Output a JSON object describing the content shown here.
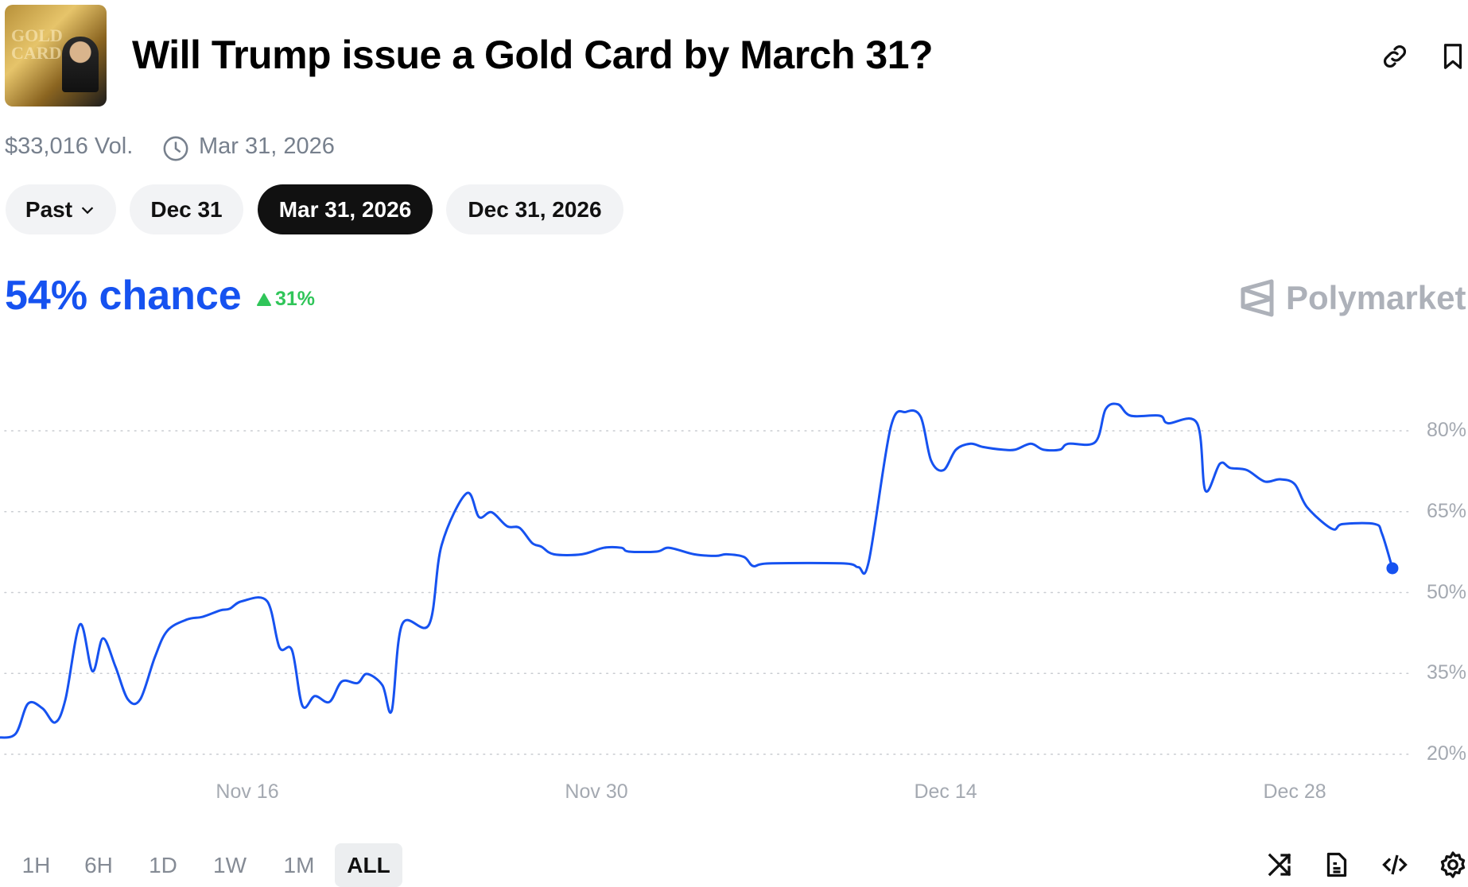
{
  "header": {
    "title": "Will Trump issue a Gold Card by March 31?",
    "thumbnail_text": "GOLD CARD",
    "icons": [
      "link-icon",
      "bookmark-icon"
    ]
  },
  "meta": {
    "volume": "$33,016 Vol.",
    "end_date": "Mar 31, 2026",
    "icon": "clock-icon"
  },
  "date_pills": [
    {
      "label": "Past",
      "dropdown": true
    },
    {
      "label": "Dec 31"
    },
    {
      "label": "Mar 31, 2026",
      "active": true
    },
    {
      "label": "Dec 31, 2026"
    }
  ],
  "summary": {
    "chance": "54% chance",
    "change": "31%",
    "change_direction": "up"
  },
  "brand": {
    "name": "Polymarket"
  },
  "colors": {
    "accent": "#1652f0",
    "up": "#30c559",
    "grid": "#c9ccd1",
    "label": "#a4a9b1"
  },
  "range_buttons": [
    {
      "label": "1H"
    },
    {
      "label": "6H"
    },
    {
      "label": "1D"
    },
    {
      "label": "1W"
    },
    {
      "label": "1M"
    },
    {
      "label": "ALL",
      "active": true
    }
  ],
  "toolbar_icons": [
    "shuffle-icon",
    "document-icon",
    "code-icon",
    "gear-icon"
  ],
  "chart_data": {
    "type": "line",
    "ylim": [
      20,
      80
    ],
    "y_ticks": [
      "20%",
      "35%",
      "50%",
      "65%",
      "80%"
    ],
    "y_tick_values": [
      20,
      35,
      50,
      65,
      80
    ],
    "x_ticks": [
      "Nov 16",
      "Nov 30",
      "Dec 14",
      "Dec 28"
    ],
    "x_tick_values": [
      "2025-11-16T00:00",
      "2025-11-30T00:00",
      "2025-12-14T00:00",
      "2025-12-28T00:00"
    ],
    "grid": "horizontal dotted",
    "y_axis_side": "right",
    "series": [
      {
        "color": "#1652f0",
        "points": [
          [
            "2025-11-06T00:00",
            23.1
          ],
          [
            "2025-11-06T17:00",
            23.8
          ],
          [
            "2025-11-07T05:00",
            29.4
          ],
          [
            "2025-11-07T19:00",
            28.5
          ],
          [
            "2025-11-08T07:00",
            25.9
          ],
          [
            "2025-11-08T17:00",
            30.2
          ],
          [
            "2025-11-09T07:00",
            44.1
          ],
          [
            "2025-11-09T19:00",
            35.4
          ],
          [
            "2025-11-10T05:00",
            41.5
          ],
          [
            "2025-11-10T17:00",
            36.3
          ],
          [
            "2025-11-11T05:00",
            30.2
          ],
          [
            "2025-11-11T17:00",
            30.2
          ],
          [
            "2025-11-12T07:00",
            38.0
          ],
          [
            "2025-11-12T19:00",
            42.9
          ],
          [
            "2025-11-13T14:00",
            45.0
          ],
          [
            "2025-11-14T05:00",
            45.5
          ],
          [
            "2025-11-14T22:00",
            46.7
          ],
          [
            "2025-11-15T07:00",
            47.0
          ],
          [
            "2025-11-15T19:00",
            48.4
          ],
          [
            "2025-11-16T19:00",
            48.4
          ],
          [
            "2025-11-17T07:00",
            39.8
          ],
          [
            "2025-11-17T19:00",
            39.3
          ],
          [
            "2025-11-18T05:00",
            29.0
          ],
          [
            "2025-11-18T17:00",
            30.8
          ],
          [
            "2025-11-19T07:00",
            29.7
          ],
          [
            "2025-11-19T19:00",
            33.5
          ],
          [
            "2025-11-20T10:00",
            33.2
          ],
          [
            "2025-11-20T19:00",
            34.9
          ],
          [
            "2025-11-21T10:00",
            32.8
          ],
          [
            "2025-11-21T19:00",
            28.1
          ],
          [
            "2025-11-22T05:00",
            44.1
          ],
          [
            "2025-11-23T07:00",
            44.1
          ],
          [
            "2025-11-23T19:00",
            58.8
          ],
          [
            "2025-11-24T19:00",
            68.4
          ],
          [
            "2025-11-25T07:00",
            64.0
          ],
          [
            "2025-11-25T19:00",
            64.9
          ],
          [
            "2025-11-26T10:00",
            62.3
          ],
          [
            "2025-11-26T22:00",
            62.0
          ],
          [
            "2025-11-27T10:00",
            59.2
          ],
          [
            "2025-11-27T19:00",
            58.5
          ],
          [
            "2025-11-28T07:00",
            57.1
          ],
          [
            "2025-11-29T10:00",
            57.1
          ],
          [
            "2025-11-30T07:00",
            58.3
          ],
          [
            "2025-12-01T00:00",
            58.3
          ],
          [
            "2025-12-01T07:00",
            57.6
          ],
          [
            "2025-12-02T10:00",
            57.6
          ],
          [
            "2025-12-02T22:00",
            58.3
          ],
          [
            "2025-12-03T22:00",
            57.1
          ],
          [
            "2025-12-04T19:00",
            56.8
          ],
          [
            "2025-12-05T05:00",
            57.1
          ],
          [
            "2025-12-05T22:00",
            56.6
          ],
          [
            "2025-12-06T07:00",
            54.9
          ],
          [
            "2025-12-06T22:00",
            55.4
          ],
          [
            "2025-12-09T22:00",
            55.4
          ],
          [
            "2025-12-10T12:00",
            54.7
          ],
          [
            "2025-12-10T22:00",
            55.7
          ],
          [
            "2025-12-11T19:00",
            80.5
          ],
          [
            "2025-12-12T10:00",
            83.5
          ],
          [
            "2025-12-13T00:00",
            82.6
          ],
          [
            "2025-12-13T10:00",
            74.5
          ],
          [
            "2025-12-13T22:00",
            72.7
          ],
          [
            "2025-12-14T10:00",
            76.5
          ],
          [
            "2025-12-15T00:00",
            77.6
          ],
          [
            "2025-12-15T12:00",
            77.0
          ],
          [
            "2025-12-16T07:00",
            76.5
          ],
          [
            "2025-12-16T19:00",
            76.5
          ],
          [
            "2025-12-17T10:00",
            77.6
          ],
          [
            "2025-12-17T22:00",
            76.5
          ],
          [
            "2025-12-18T14:00",
            76.5
          ],
          [
            "2025-12-18T22:00",
            77.6
          ],
          [
            "2025-12-20T00:00",
            77.9
          ],
          [
            "2025-12-20T10:00",
            84.0
          ],
          [
            "2025-12-20T22:00",
            84.9
          ],
          [
            "2025-12-21T10:00",
            82.8
          ],
          [
            "2025-12-22T14:00",
            82.8
          ],
          [
            "2025-12-22T22:00",
            81.4
          ],
          [
            "2025-12-24T02:00",
            81.4
          ],
          [
            "2025-12-24T10:00",
            68.9
          ],
          [
            "2025-12-25T00:00",
            73.9
          ],
          [
            "2025-12-25T10:00",
            73.1
          ],
          [
            "2025-12-26T02:00",
            72.7
          ],
          [
            "2025-12-26T19:00",
            70.6
          ],
          [
            "2025-12-27T10:00",
            71.0
          ],
          [
            "2025-12-28T00:00",
            70.1
          ],
          [
            "2025-12-28T12:00",
            65.8
          ],
          [
            "2025-12-29T12:00",
            61.8
          ],
          [
            "2025-12-29T22:00",
            62.7
          ],
          [
            "2025-12-31T05:00",
            62.7
          ],
          [
            "2025-12-31T12:00",
            60.9
          ],
          [
            "2025-12-31T22:00",
            54.5
          ]
        ]
      }
    ]
  }
}
